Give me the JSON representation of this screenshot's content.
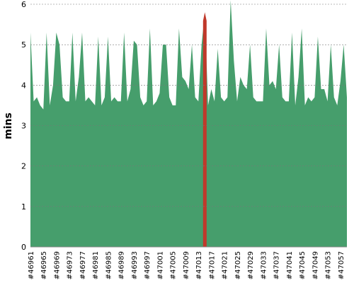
{
  "chart_data": {
    "type": "area",
    "y_label": "mins",
    "categories": [
      "#46961",
      null,
      null,
      null,
      "#46965",
      null,
      null,
      null,
      "#46969",
      null,
      null,
      null,
      "#46973",
      null,
      null,
      null,
      "#46977",
      null,
      null,
      null,
      "#46981",
      null,
      null,
      null,
      "#46985",
      null,
      null,
      null,
      "#46989",
      null,
      null,
      null,
      "#46993",
      null,
      null,
      null,
      "#46997",
      null,
      null,
      null,
      "#47001",
      null,
      null,
      null,
      "#47005",
      null,
      null,
      null,
      "#47009",
      null,
      null,
      null,
      "#47013",
      null,
      null,
      null,
      "#47017",
      null,
      null,
      null,
      "#47021",
      null,
      null,
      null,
      "#47025",
      null,
      null,
      null,
      "#47029",
      null,
      null,
      null,
      "#47033",
      null,
      null,
      null,
      "#47037",
      null,
      null,
      null,
      "#47041",
      null,
      null,
      null,
      "#47045",
      null,
      null,
      null,
      "#47049",
      null,
      null,
      null,
      "#47053",
      null,
      null,
      null,
      "#47057",
      null,
      null
    ],
    "series": [
      {
        "color": "#469e6c",
        "values": [
          5.3,
          3.6,
          3.7,
          3.5,
          3.4,
          5.3,
          3.5,
          4.0,
          5.3,
          5.0,
          3.7,
          3.6,
          3.6,
          5.3,
          3.6,
          4.2,
          5.3,
          3.6,
          3.7,
          3.6,
          3.5,
          5.2,
          3.5,
          3.7,
          5.2,
          3.6,
          3.7,
          3.6,
          3.6,
          5.3,
          3.6,
          3.9,
          5.1,
          5.0,
          3.7,
          3.5,
          3.6,
          5.4,
          3.5,
          3.6,
          3.8,
          5.0,
          5.0,
          3.7,
          3.5,
          3.5,
          5.4,
          4.2,
          4.1,
          3.9,
          5.0,
          3.7,
          3.6,
          5.0,
          5.8,
          3.5,
          3.9,
          3.6,
          4.9,
          3.7,
          3.6,
          3.7,
          6.1,
          4.6,
          3.6,
          4.2,
          4.0,
          3.9,
          5.0,
          3.7,
          3.6,
          3.6,
          3.6,
          5.4,
          4.0,
          4.1,
          3.9,
          5.0,
          3.7,
          3.6,
          3.6,
          5.3,
          3.5,
          4.2,
          5.4,
          3.5,
          3.7,
          3.6,
          3.7,
          5.2,
          3.9,
          3.9,
          3.6,
          5.0,
          3.7,
          3.5,
          4.1,
          5.0,
          3.7
        ]
      }
    ],
    "highlight": {
      "index": 54,
      "color": "#c0392b"
    },
    "ylim": [
      0,
      6
    ],
    "yticks": [
      0,
      1,
      2,
      3,
      4,
      5,
      6
    ],
    "grid": true
  }
}
